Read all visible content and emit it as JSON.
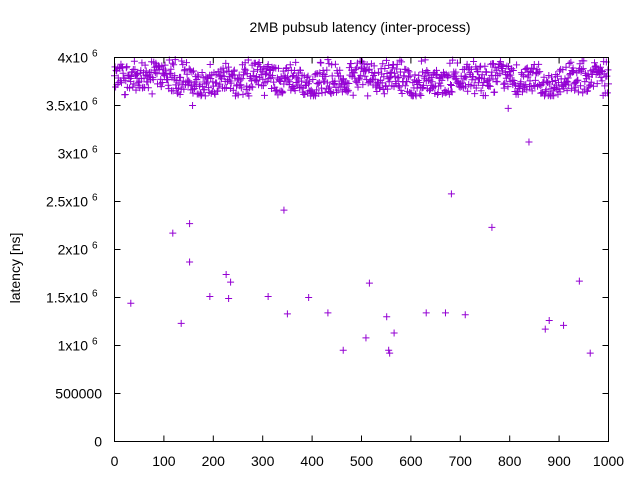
{
  "chart_data": {
    "type": "scatter",
    "title": "2MB pubsub latency (inter-process)",
    "xlabel": "",
    "ylabel": "latency [ns]",
    "xlim": [
      0,
      1000
    ],
    "ylim": [
      0,
      4000000
    ],
    "grid": false,
    "legend": "none",
    "marker": "+",
    "color": "#9400d3",
    "x_ticks": [
      {
        "value": 0,
        "label": "0"
      },
      {
        "value": 100,
        "label": "100"
      },
      {
        "value": 200,
        "label": "200"
      },
      {
        "value": 300,
        "label": "300"
      },
      {
        "value": 400,
        "label": "400"
      },
      {
        "value": 500,
        "label": "500"
      },
      {
        "value": 600,
        "label": "600"
      },
      {
        "value": 700,
        "label": "700"
      },
      {
        "value": 800,
        "label": "800"
      },
      {
        "value": 900,
        "label": "900"
      },
      {
        "value": 1000,
        "label": "1000"
      }
    ],
    "y_ticks": [
      {
        "value": 0,
        "base": "0",
        "exp": ""
      },
      {
        "value": 500000,
        "base": "500000",
        "exp": ""
      },
      {
        "value": 1000000,
        "base": "1x10",
        "exp": "6"
      },
      {
        "value": 1500000,
        "base": "1.5x10",
        "exp": "6"
      },
      {
        "value": 2000000,
        "base": "2x10",
        "exp": "6"
      },
      {
        "value": 2500000,
        "base": "2.5x10",
        "exp": "6"
      },
      {
        "value": 3000000,
        "base": "3x10",
        "exp": "6"
      },
      {
        "value": 3500000,
        "base": "3.5x10",
        "exp": "6"
      },
      {
        "value": 4000000,
        "base": "4x10",
        "exp": "6"
      }
    ],
    "band": {
      "x_start": 0,
      "x_end": 1000,
      "count": 920,
      "low": 3600000,
      "high": 3980000,
      "typical": 3770000
    },
    "outliers": [
      {
        "x": 33,
        "y": 1440000
      },
      {
        "x": 118,
        "y": 2170000
      },
      {
        "x": 135,
        "y": 1230000
      },
      {
        "x": 152,
        "y": 2270000
      },
      {
        "x": 152,
        "y": 1870000
      },
      {
        "x": 158,
        "y": 3500000
      },
      {
        "x": 193,
        "y": 1510000
      },
      {
        "x": 226,
        "y": 1740000
      },
      {
        "x": 231,
        "y": 1490000
      },
      {
        "x": 235,
        "y": 1660000
      },
      {
        "x": 311,
        "y": 1510000
      },
      {
        "x": 343,
        "y": 2410000
      },
      {
        "x": 350,
        "y": 1330000
      },
      {
        "x": 393,
        "y": 1500000
      },
      {
        "x": 432,
        "y": 1340000
      },
      {
        "x": 463,
        "y": 950000
      },
      {
        "x": 509,
        "y": 1080000
      },
      {
        "x": 516,
        "y": 1650000
      },
      {
        "x": 551,
        "y": 1300000
      },
      {
        "x": 555,
        "y": 950000
      },
      {
        "x": 557,
        "y": 920000
      },
      {
        "x": 566,
        "y": 1130000
      },
      {
        "x": 631,
        "y": 1340000
      },
      {
        "x": 670,
        "y": 1340000
      },
      {
        "x": 682,
        "y": 2580000
      },
      {
        "x": 710,
        "y": 1320000
      },
      {
        "x": 764,
        "y": 2230000
      },
      {
        "x": 797,
        "y": 3470000
      },
      {
        "x": 839,
        "y": 3120000
      },
      {
        "x": 872,
        "y": 1170000
      },
      {
        "x": 880,
        "y": 1260000
      },
      {
        "x": 909,
        "y": 1210000
      },
      {
        "x": 941,
        "y": 1670000
      },
      {
        "x": 963,
        "y": 920000
      }
    ]
  }
}
